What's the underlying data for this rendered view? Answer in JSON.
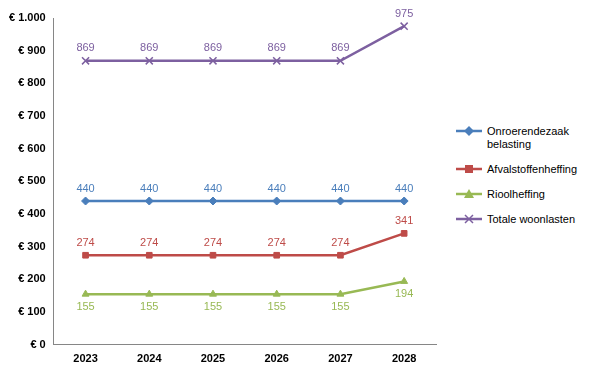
{
  "chart_data": {
    "type": "line",
    "categories": [
      "2023",
      "2024",
      "2025",
      "2026",
      "2027",
      "2028"
    ],
    "series": [
      {
        "name": "Onroerendezaak belasting",
        "color": "#4a7ebb",
        "marker": "diamond",
        "values": [
          440,
          440,
          440,
          440,
          440,
          440
        ]
      },
      {
        "name": "Afvalstoffenheffing",
        "color": "#be4b48",
        "marker": "square",
        "values": [
          274,
          274,
          274,
          274,
          274,
          341
        ]
      },
      {
        "name": "Rioolheffing",
        "color": "#98b954",
        "marker": "triangle",
        "values": [
          155,
          155,
          155,
          155,
          155,
          194
        ]
      },
      {
        "name": "Totale woonlasten",
        "color": "#7d60a0",
        "marker": "x",
        "values": [
          869,
          869,
          869,
          869,
          869,
          975
        ]
      }
    ],
    "ylim": [
      0,
      1000
    ],
    "yticks": [
      {
        "value": 0,
        "label": "€ 0"
      },
      {
        "value": 100,
        "label": "€ 100"
      },
      {
        "value": 200,
        "label": "€ 200"
      },
      {
        "value": 300,
        "label": "€ 300"
      },
      {
        "value": 400,
        "label": "€ 400"
      },
      {
        "value": 500,
        "label": "€ 500"
      },
      {
        "value": 600,
        "label": "€ 600"
      },
      {
        "value": 700,
        "label": "€ 700"
      },
      {
        "value": 800,
        "label": "€ 800"
      },
      {
        "value": 900,
        "label": "€ 900"
      },
      {
        "value": 1000,
        "label": "€ 1.000"
      }
    ],
    "grid": false,
    "legend": "right",
    "data_labels": true
  }
}
